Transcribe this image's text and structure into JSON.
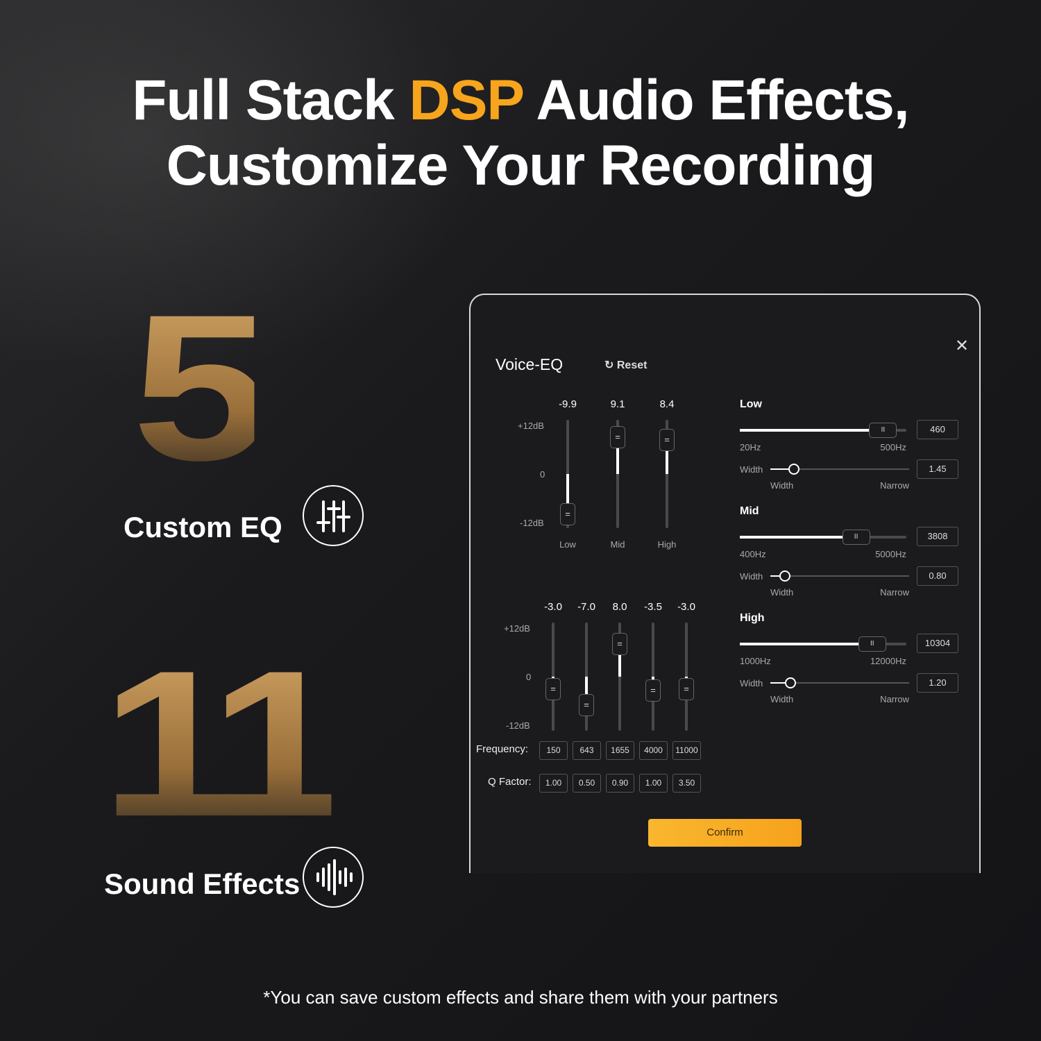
{
  "headline": {
    "line1_pre": "Full Stack ",
    "line1_accent": "DSP",
    "line1_post": " Audio Effects,",
    "line2": "Customize Your Recording",
    "accent_color": "#f7a51c"
  },
  "features": [
    {
      "number": "5",
      "label": "Custom EQ",
      "icon": "sliders-icon"
    },
    {
      "number": "11",
      "label": "Sound Effects",
      "icon": "waveform-icon"
    }
  ],
  "panel": {
    "title": "Voice-EQ",
    "reset_label": "Reset",
    "close_icon": "close-icon",
    "eq3": {
      "db_top": "+12dB",
      "db_mid": "0",
      "db_bot": "-12dB",
      "bands": [
        {
          "label": "Low",
          "value": "-9.9"
        },
        {
          "label": "Mid",
          "value": "9.1"
        },
        {
          "label": "High",
          "value": "8.4"
        }
      ]
    },
    "eq5": {
      "db_top": "+12dB",
      "db_mid": "0",
      "db_bot": "-12dB",
      "freq_label": "Frequency:",
      "q_label": "Q Factor:",
      "bands": [
        {
          "value": "-3.0",
          "freq": "150",
          "q": "1.00"
        },
        {
          "value": "-7.0",
          "freq": "643",
          "q": "0.50"
        },
        {
          "value": "8.0",
          "freq": "1655",
          "q": "0.90"
        },
        {
          "value": "-3.5",
          "freq": "4000",
          "q": "1.00"
        },
        {
          "value": "-3.0",
          "freq": "11000",
          "q": "3.50"
        }
      ]
    },
    "sections": [
      {
        "name": "Low",
        "freq": "460",
        "min": "20Hz",
        "max": "500Hz",
        "min_v": 20,
        "max_v": 500,
        "width_label": "Width",
        "width": "1.45",
        "left_label": "Width",
        "right_label": "Narrow"
      },
      {
        "name": "Mid",
        "freq": "3808",
        "min": "400Hz",
        "max": "5000Hz",
        "min_v": 400,
        "max_v": 5000,
        "width_label": "Width",
        "width": "0.80",
        "left_label": "Width",
        "right_label": "Narrow"
      },
      {
        "name": "High",
        "freq": "10304",
        "min": "1000Hz",
        "max": "12000Hz",
        "min_v": 1000,
        "max_v": 12000,
        "width_label": "Width",
        "width": "1.20",
        "left_label": "Width",
        "right_label": "Narrow"
      }
    ],
    "confirm_label": "Confirm"
  },
  "footnote": "*You can save custom effects and share them with your partners"
}
